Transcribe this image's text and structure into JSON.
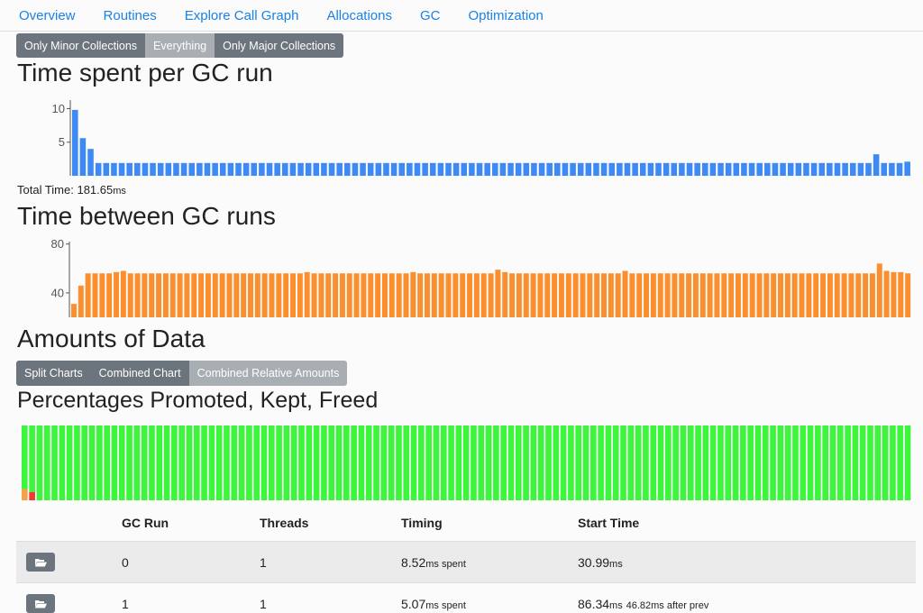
{
  "nav": {
    "items": [
      "Overview",
      "Routines",
      "Explore Call Graph",
      "Allocations",
      "GC",
      "Optimization"
    ]
  },
  "filter": {
    "buttons": [
      "Only Minor Collections",
      "Everything",
      "Only Major Collections"
    ],
    "active_index": 1
  },
  "gc_time": {
    "title": "Time spent per GC run",
    "total_label": "Total Time: ",
    "total_value": "181.65",
    "total_unit": "ms"
  },
  "gc_between": {
    "title": "Time between GC runs"
  },
  "amounts": {
    "title": "Amounts of Data",
    "buttons": [
      "Split Charts",
      "Combined Chart",
      "Combined Relative Amounts"
    ],
    "active_index": 2,
    "subtitle": "Percentages Promoted, Kept, Freed"
  },
  "colors": {
    "blue": "#3d8af7",
    "orange": "#fb8f2e",
    "green": "#3cf53c",
    "red": "#f03c2e",
    "light_orange": "#f7a04a",
    "link": "#1a82e2"
  },
  "chart_data": [
    {
      "type": "bar",
      "title": "Time spent per GC run",
      "ylim": [
        0,
        11
      ],
      "yticks": [
        "10",
        "5"
      ],
      "series": [
        {
          "values": [
            9.8,
            5.6,
            4.0,
            1.9,
            1.9,
            1.9,
            1.9,
            1.9,
            1.9,
            1.9,
            1.9,
            1.9,
            1.9,
            1.9,
            1.9,
            1.9,
            1.9,
            1.9,
            1.9,
            1.9,
            1.9,
            1.9,
            1.9,
            1.9,
            1.9,
            1.9,
            1.9,
            1.9,
            1.9,
            1.9,
            1.9,
            1.9,
            1.9,
            1.9,
            1.9,
            1.9,
            1.9,
            1.9,
            1.9,
            1.9,
            1.9,
            1.9,
            1.9,
            1.9,
            1.9,
            1.9,
            1.9,
            1.9,
            1.9,
            1.9,
            1.9,
            1.9,
            1.9,
            1.9,
            1.9,
            1.9,
            1.9,
            1.9,
            1.9,
            1.9,
            1.9,
            1.9,
            1.9,
            1.9,
            1.9,
            1.9,
            1.9,
            1.9,
            1.9,
            1.9,
            1.9,
            1.9,
            1.9,
            1.9,
            1.9,
            1.9,
            1.9,
            1.9,
            1.9,
            1.9,
            1.9,
            1.9,
            1.9,
            1.9,
            1.9,
            1.9,
            1.9,
            1.9,
            1.9,
            1.9,
            1.9,
            1.9,
            1.9,
            1.9,
            1.9,
            1.9,
            1.9,
            1.9,
            1.9,
            1.9,
            1.9,
            1.9,
            1.9,
            3.2,
            1.9,
            1.9,
            1.9,
            2.1
          ]
        }
      ]
    },
    {
      "type": "bar",
      "title": "Time between GC runs",
      "ylim": [
        20,
        82
      ],
      "yticks": [
        "80",
        "40"
      ],
      "series": [
        {
          "values": [
            31,
            46,
            56,
            56,
            56,
            56,
            57,
            58,
            56,
            56,
            56,
            56,
            56,
            56,
            56,
            56,
            56,
            56,
            56,
            56,
            56,
            56,
            56,
            56,
            56,
            56,
            56,
            56,
            56,
            56,
            56,
            56,
            56,
            57,
            56,
            56,
            56,
            56,
            56,
            56,
            56,
            56,
            56,
            56,
            56,
            56,
            56,
            56,
            57,
            56,
            56,
            56,
            56,
            56,
            56,
            56,
            56,
            56,
            56,
            56,
            59,
            57,
            56,
            56,
            56,
            56,
            56,
            56,
            56,
            56,
            56,
            56,
            56,
            56,
            56,
            56,
            56,
            56,
            58,
            56,
            56,
            56,
            56,
            56,
            56,
            56,
            56,
            56,
            56,
            56,
            56,
            56,
            56,
            56,
            56,
            56,
            56,
            56,
            56,
            56,
            56,
            56,
            56,
            56,
            56,
            56,
            56,
            56,
            56,
            56,
            56,
            56,
            56,
            56,
            64,
            58,
            57,
            57,
            56
          ]
        }
      ]
    },
    {
      "type": "bar",
      "title": "Percentages Promoted, Kept, Freed",
      "stacked": true,
      "ylim": [
        0,
        100
      ],
      "series": [
        {
          "values": [
            15,
            11,
            0,
            0,
            0,
            0,
            0,
            0,
            0,
            0,
            0,
            0,
            0,
            0,
            0,
            0,
            0,
            0,
            0,
            0,
            0,
            0,
            0,
            0,
            0,
            0,
            0,
            0,
            0,
            0,
            0,
            0,
            0,
            0,
            0,
            0,
            0,
            0,
            0,
            0,
            0,
            0,
            0,
            0,
            0,
            0,
            0,
            0,
            0,
            0,
            0,
            0,
            0,
            0,
            0,
            0,
            0,
            0,
            0,
            0,
            0,
            0,
            0,
            0,
            0,
            0,
            0,
            0,
            0,
            0,
            0,
            0,
            0,
            0,
            0,
            0,
            0,
            0,
            0,
            0,
            0,
            0,
            0,
            0,
            0,
            0,
            0,
            0,
            0,
            0,
            0,
            0,
            0,
            0,
            0,
            0,
            0,
            0,
            0,
            0,
            0,
            0,
            0,
            0,
            0,
            0,
            0,
            0,
            0,
            0,
            0,
            0,
            0,
            0,
            0,
            0,
            0,
            0,
            0
          ]
        },
        {
          "values": [
            85,
            89,
            100,
            100,
            100,
            100,
            100,
            100,
            100,
            100,
            100,
            100,
            100,
            100,
            100,
            100,
            100,
            100,
            100,
            100,
            100,
            100,
            100,
            100,
            100,
            100,
            100,
            100,
            100,
            100,
            100,
            100,
            100,
            100,
            100,
            100,
            100,
            100,
            100,
            100,
            100,
            100,
            100,
            100,
            100,
            100,
            100,
            100,
            100,
            100,
            100,
            100,
            100,
            100,
            100,
            100,
            100,
            100,
            100,
            100,
            100,
            100,
            100,
            100,
            100,
            100,
            100,
            100,
            100,
            100,
            100,
            100,
            100,
            100,
            100,
            100,
            100,
            100,
            100,
            100,
            100,
            100,
            100,
            100,
            100,
            100,
            100,
            100,
            100,
            100,
            100,
            100,
            100,
            100,
            100,
            100,
            100,
            100,
            100,
            100,
            100,
            100,
            100,
            100,
            100,
            100,
            100,
            100,
            100,
            100,
            100,
            100,
            100,
            100,
            100,
            100,
            100,
            100,
            100
          ]
        }
      ]
    }
  ],
  "table": {
    "headers": [
      "",
      "GC Run",
      "Threads",
      "Timing",
      "Start Time"
    ],
    "rows": [
      {
        "run": "0",
        "threads": "1",
        "timing": "8.52",
        "timing_unit": "ms spent",
        "start": "30.99",
        "start_unit": "ms",
        "after": ""
      },
      {
        "run": "1",
        "threads": "1",
        "timing": "5.07",
        "timing_unit": "ms spent",
        "start": "86.34",
        "start_unit": "ms",
        "after": "46.82ms after prev"
      }
    ]
  }
}
